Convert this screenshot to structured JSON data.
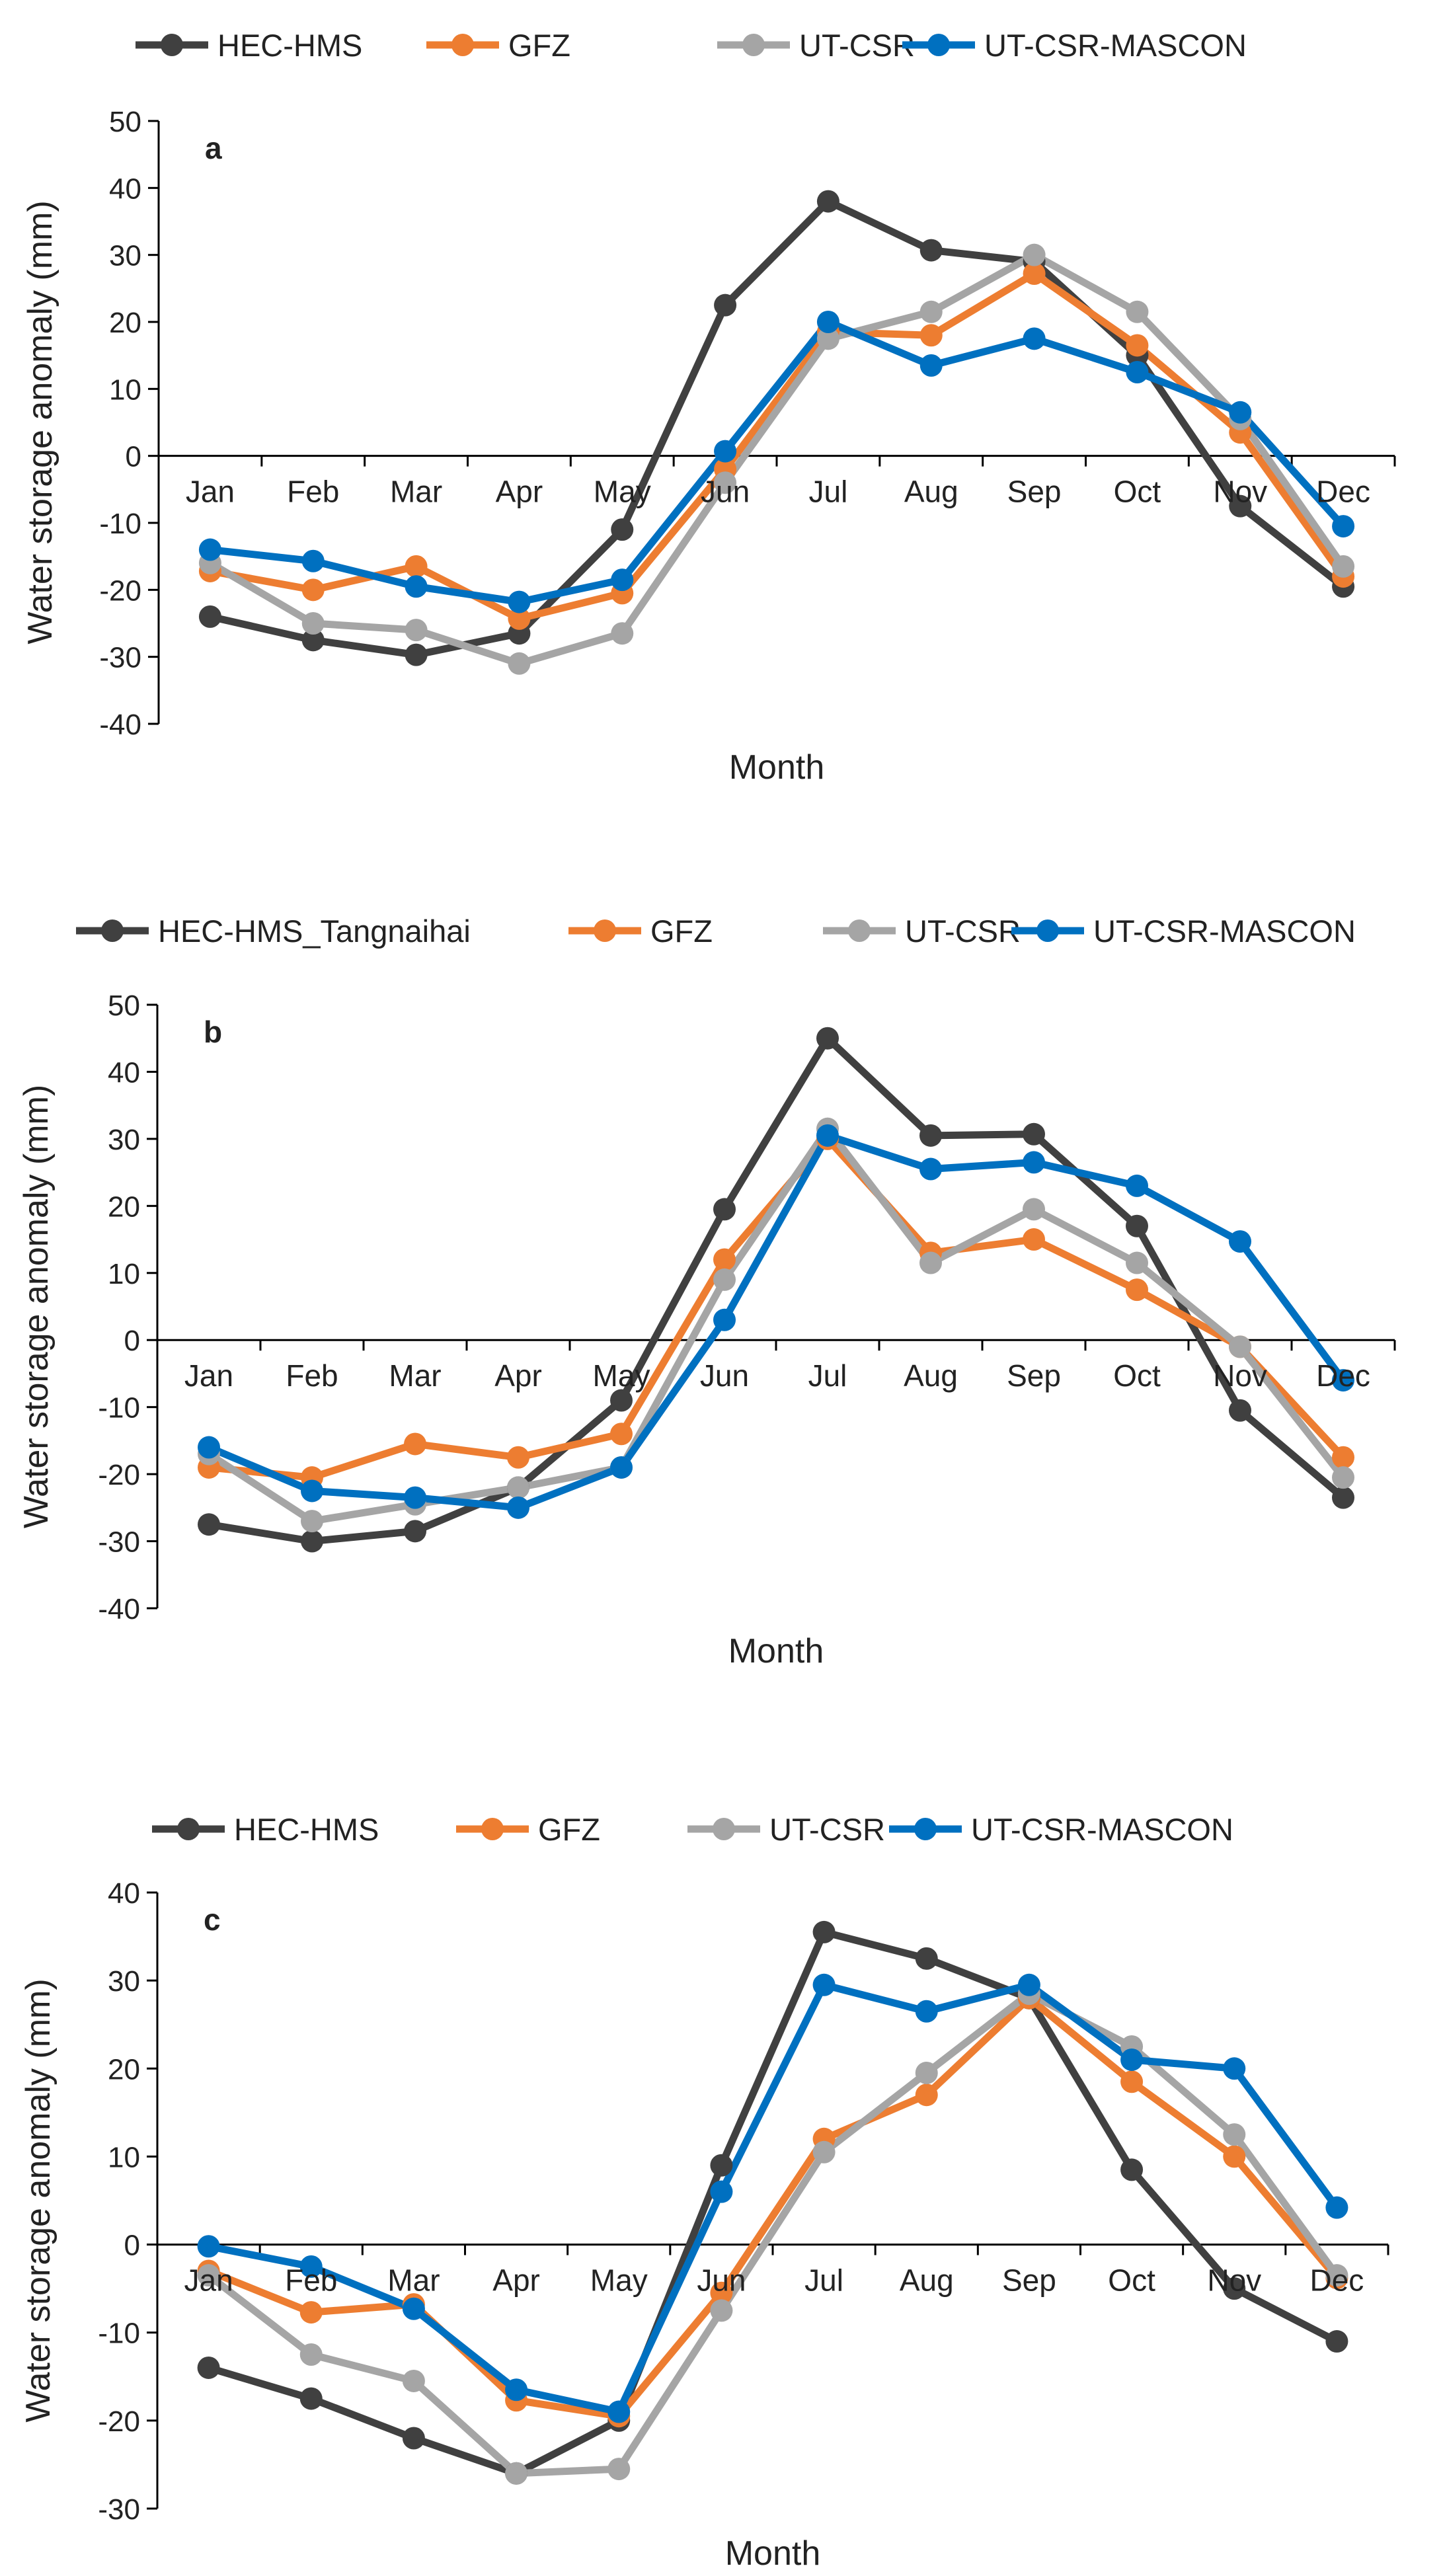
{
  "chart_data": [
    {
      "type": "line",
      "panel_label": "a",
      "categories": [
        "Jan",
        "Feb",
        "Mar",
        "Apr",
        "May",
        "Jun",
        "Jul",
        "Aug",
        "Sep",
        "Oct",
        "Nov",
        "Dec"
      ],
      "ylabel": "Water storage anomaly (mm)",
      "xlabel": "Month",
      "ylim": [
        -40,
        50
      ],
      "yticks": [
        -40,
        -30,
        -20,
        -10,
        0,
        10,
        20,
        30,
        40,
        50
      ],
      "legend_position": "top",
      "series": [
        {
          "name": "HEC-HMS",
          "color": "#404040",
          "values": [
            -24,
            -27.5,
            -29.7,
            -26.5,
            -11,
            22.5,
            38,
            30.7,
            29,
            15,
            -7.5,
            -19.5
          ]
        },
        {
          "name": "GFZ",
          "color": "#ED7D31",
          "values": [
            -17.2,
            -20,
            -16.5,
            -24.3,
            -20.5,
            -2,
            18.5,
            18,
            27.2,
            16.5,
            3.5,
            -18
          ]
        },
        {
          "name": "UT-CSR",
          "color": "#A5A5A5",
          "values": [
            -16,
            -25,
            -26,
            -31,
            -26.5,
            -4,
            17.5,
            21.5,
            30,
            21.5,
            5.5,
            -16.5
          ]
        },
        {
          "name": "UT-CSR-MASCON",
          "color": "#0070C0",
          "values": [
            -14,
            -15.7,
            -19.5,
            -21.8,
            -18.5,
            0.7,
            20,
            13.5,
            17.5,
            12.5,
            6.5,
            -10.5
          ]
        }
      ]
    },
    {
      "type": "line",
      "panel_label": "b",
      "categories": [
        "Jan",
        "Feb",
        "Mar",
        "Apr",
        "May",
        "Jun",
        "Jul",
        "Aug",
        "Sep",
        "Oct",
        "Nov",
        "Dec"
      ],
      "ylabel": "Water storage anomaly (mm)",
      "xlabel": "Month",
      "ylim": [
        -40,
        50
      ],
      "yticks": [
        -40,
        -30,
        -20,
        -10,
        0,
        10,
        20,
        30,
        40,
        50
      ],
      "legend_position": "top",
      "series": [
        {
          "name": "HEC-HMS_Tangnaihai",
          "color": "#404040",
          "values": [
            -27.5,
            -30,
            -28.5,
            -22,
            -9,
            19.5,
            45,
            30.5,
            30.7,
            17,
            -10.5,
            -23.5
          ]
        },
        {
          "name": "GFZ",
          "color": "#ED7D31",
          "values": [
            -19,
            -20.5,
            -15.5,
            -17.5,
            -14,
            12,
            30,
            13,
            15,
            7.5,
            -1,
            -17.5
          ]
        },
        {
          "name": "UT-CSR",
          "color": "#A5A5A5",
          "values": [
            -17,
            -27,
            -24.5,
            -22,
            -19,
            9,
            31.5,
            11.5,
            19.5,
            11.5,
            -1,
            -20.5
          ]
        },
        {
          "name": "UT-CSR-MASCON",
          "color": "#0070C0",
          "values": [
            -16,
            -22.5,
            -23.5,
            -25,
            -19,
            3,
            30.5,
            25.5,
            26.5,
            23,
            14.7,
            -6
          ]
        }
      ]
    },
    {
      "type": "line",
      "panel_label": "c",
      "categories": [
        "Jan",
        "Feb",
        "Mar",
        "Apr",
        "May",
        "Jun",
        "Jul",
        "Aug",
        "Sep",
        "Oct",
        "Nov",
        "Dec"
      ],
      "ylabel": "Water storage anomaly (mm)",
      "xlabel": "Month",
      "ylim": [
        -30,
        40
      ],
      "yticks": [
        -30,
        -20,
        -10,
        0,
        10,
        20,
        30,
        40
      ],
      "legend_position": "top",
      "series": [
        {
          "name": "HEC-HMS",
          "color": "#404040",
          "values": [
            -14,
            -17.5,
            -22,
            -26,
            -20,
            9,
            35.5,
            32.5,
            28,
            8.5,
            -5,
            -11
          ]
        },
        {
          "name": "GFZ",
          "color": "#ED7D31",
          "values": [
            -3,
            -7.7,
            -6.8,
            -17.7,
            -19.5,
            -5.5,
            12,
            17,
            28,
            18.5,
            10,
            -3.8
          ]
        },
        {
          "name": "UT-CSR",
          "color": "#A5A5A5",
          "values": [
            -3.5,
            -12.5,
            -15.5,
            -26,
            -25.5,
            -7.5,
            10.5,
            19.5,
            28.5,
            22.5,
            12.5,
            -3.5
          ]
        },
        {
          "name": "UT-CSR-MASCON",
          "color": "#0070C0",
          "values": [
            -0.2,
            -2.5,
            -7.3,
            -16.5,
            -19,
            6,
            29.5,
            26.5,
            29.5,
            21,
            20,
            4.2
          ]
        }
      ]
    }
  ]
}
